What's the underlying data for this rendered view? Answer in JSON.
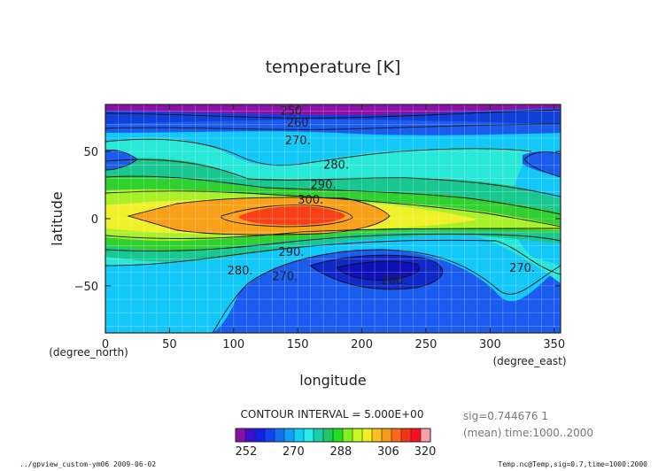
{
  "chart_data": {
    "type": "heatmap",
    "title": "temperature [K]",
    "xlabel": "longitude",
    "ylabel": "latitude",
    "x_unit": "(degree_east)",
    "y_unit": "(degree_north)",
    "xlim": [
      0,
      355
    ],
    "ylim": [
      -85,
      85
    ],
    "x_ticks": [
      0,
      50,
      100,
      150,
      200,
      250,
      300,
      350
    ],
    "y_ticks": [
      50,
      0,
      -50
    ],
    "contour_interval_text": "CONTOUR INTERVAL = 5.000E+00",
    "contour_labels": [
      {
        "text": "250",
        "lon": 145,
        "lat": 80
      },
      {
        "text": "260",
        "lon": 150,
        "lat": 71
      },
      {
        "text": "270.",
        "lon": 150,
        "lat": 58
      },
      {
        "text": "280.",
        "lon": 180,
        "lat": 40
      },
      {
        "text": "290.",
        "lon": 170,
        "lat": 25
      },
      {
        "text": "300.",
        "lon": 160,
        "lat": 14
      },
      {
        "text": "290.",
        "lon": 145,
        "lat": -25
      },
      {
        "text": "280.",
        "lon": 105,
        "lat": -39
      },
      {
        "text": "270.",
        "lon": 140,
        "lat": -43
      },
      {
        "text": "260.",
        "lon": 225,
        "lat": -46
      },
      {
        "text": "270.",
        "lon": 325,
        "lat": -37
      }
    ],
    "colorbar": {
      "tick_labels": [
        "252",
        "270",
        "288",
        "306",
        "320"
      ],
      "tick_values": [
        252,
        270,
        288,
        306,
        320
      ],
      "range": [
        248,
        322
      ],
      "colors": [
        "#8b0ea8",
        "#3b0ed8",
        "#1020e8",
        "#1044f0",
        "#1070f0",
        "#10a0f8",
        "#10d0f8",
        "#20f0e8",
        "#18d0a8",
        "#20c860",
        "#20e020",
        "#80f020",
        "#c8f820",
        "#f0f020",
        "#f8c020",
        "#f89818",
        "#f86818",
        "#f83018",
        "#f81020",
        "#f8a0a8"
      ]
    },
    "info": {
      "sig": "sig=0.744676 1",
      "mean": "(mean) time:1000..2000"
    },
    "footer_left": "../gpview_custom-ym06  2009-06-02",
    "footer_right": "Temp.nc@Temp,sig=0.7,time=1000:2000"
  }
}
